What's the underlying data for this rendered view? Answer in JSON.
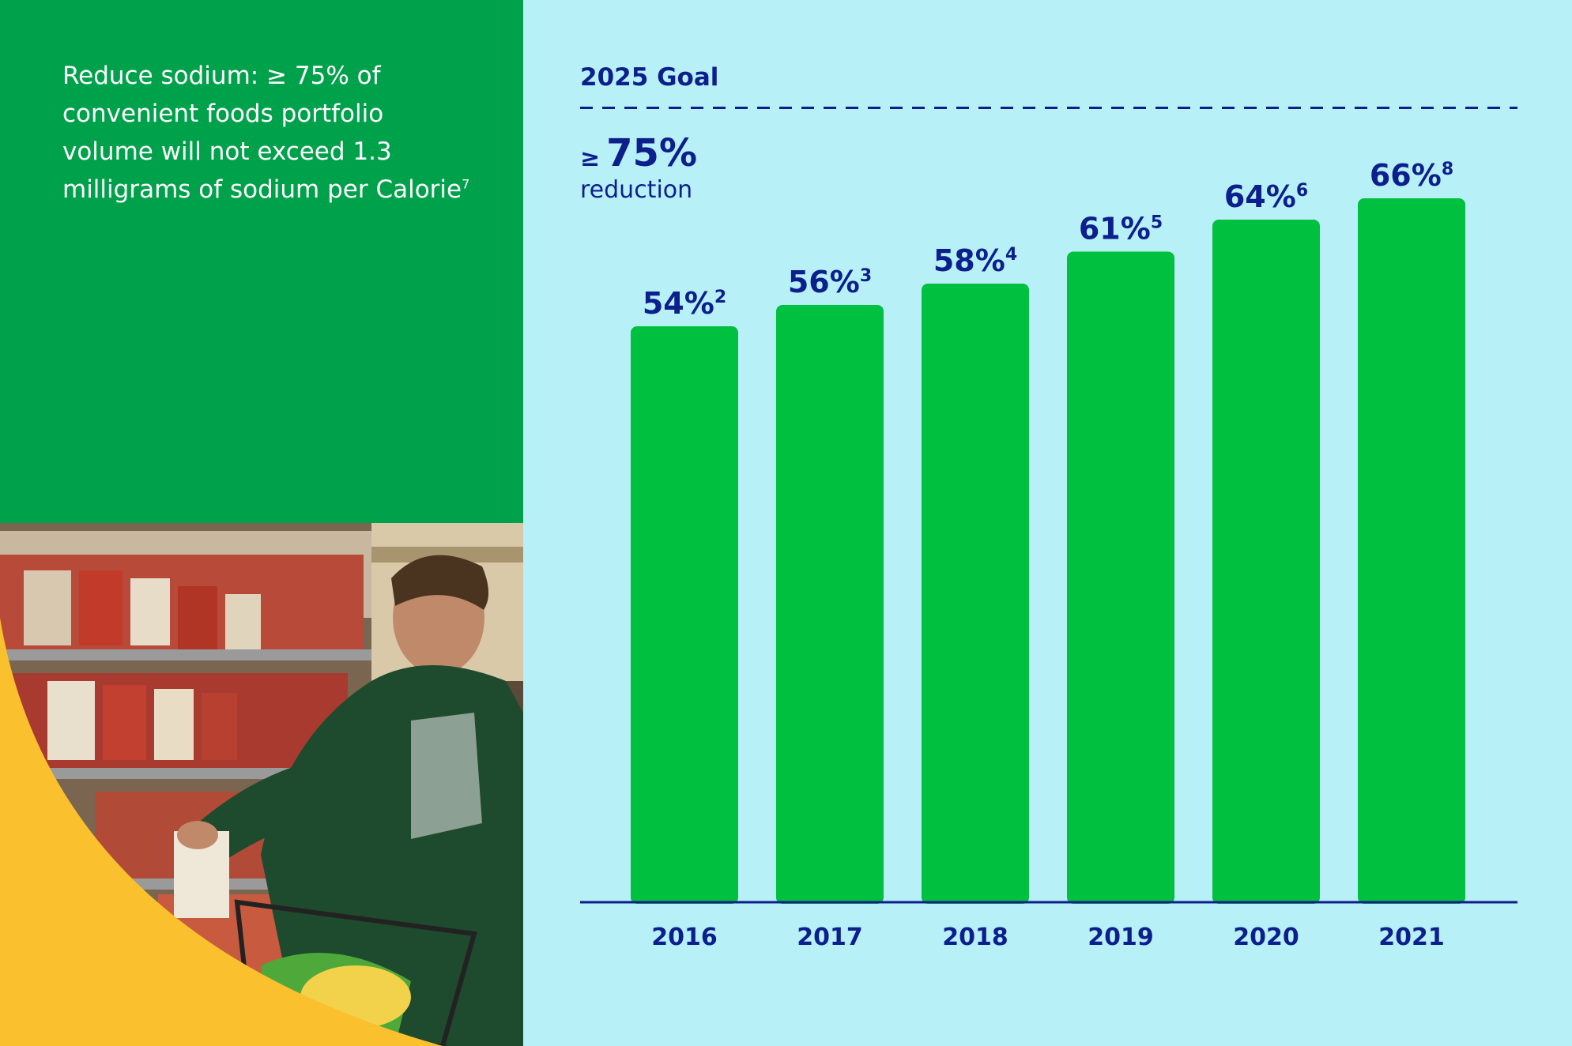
{
  "left_panel": {
    "text": "Reduce sodium: ≥ 75% of convenient foods portfolio volume will not exceed 1.3 milligrams of sodium per Calorie",
    "footnote": "7"
  },
  "goal": {
    "title": "2025 Goal",
    "symbol": "≥",
    "value": "75%",
    "subtitle": "reduction"
  },
  "colors": {
    "bar": "#00c040",
    "text": "#0c1f8c",
    "left_bg": "#00a14b",
    "chart_bg": "#b7f0f7",
    "accent_yellow": "#fbc02d"
  },
  "chart_data": {
    "type": "bar",
    "categories": [
      "2016",
      "2017",
      "2018",
      "2019",
      "2020",
      "2021"
    ],
    "values": [
      54,
      56,
      58,
      61,
      64,
      66
    ],
    "value_labels": [
      "54%",
      "56%",
      "58%",
      "61%",
      "64%",
      "66%"
    ],
    "footnotes": [
      "2",
      "3",
      "4",
      "5",
      "6",
      "8"
    ],
    "goal_value": 75,
    "goal_line": "dashed",
    "ylim": [
      0,
      75
    ],
    "grid": false,
    "xlabel": "",
    "ylabel": ""
  }
}
